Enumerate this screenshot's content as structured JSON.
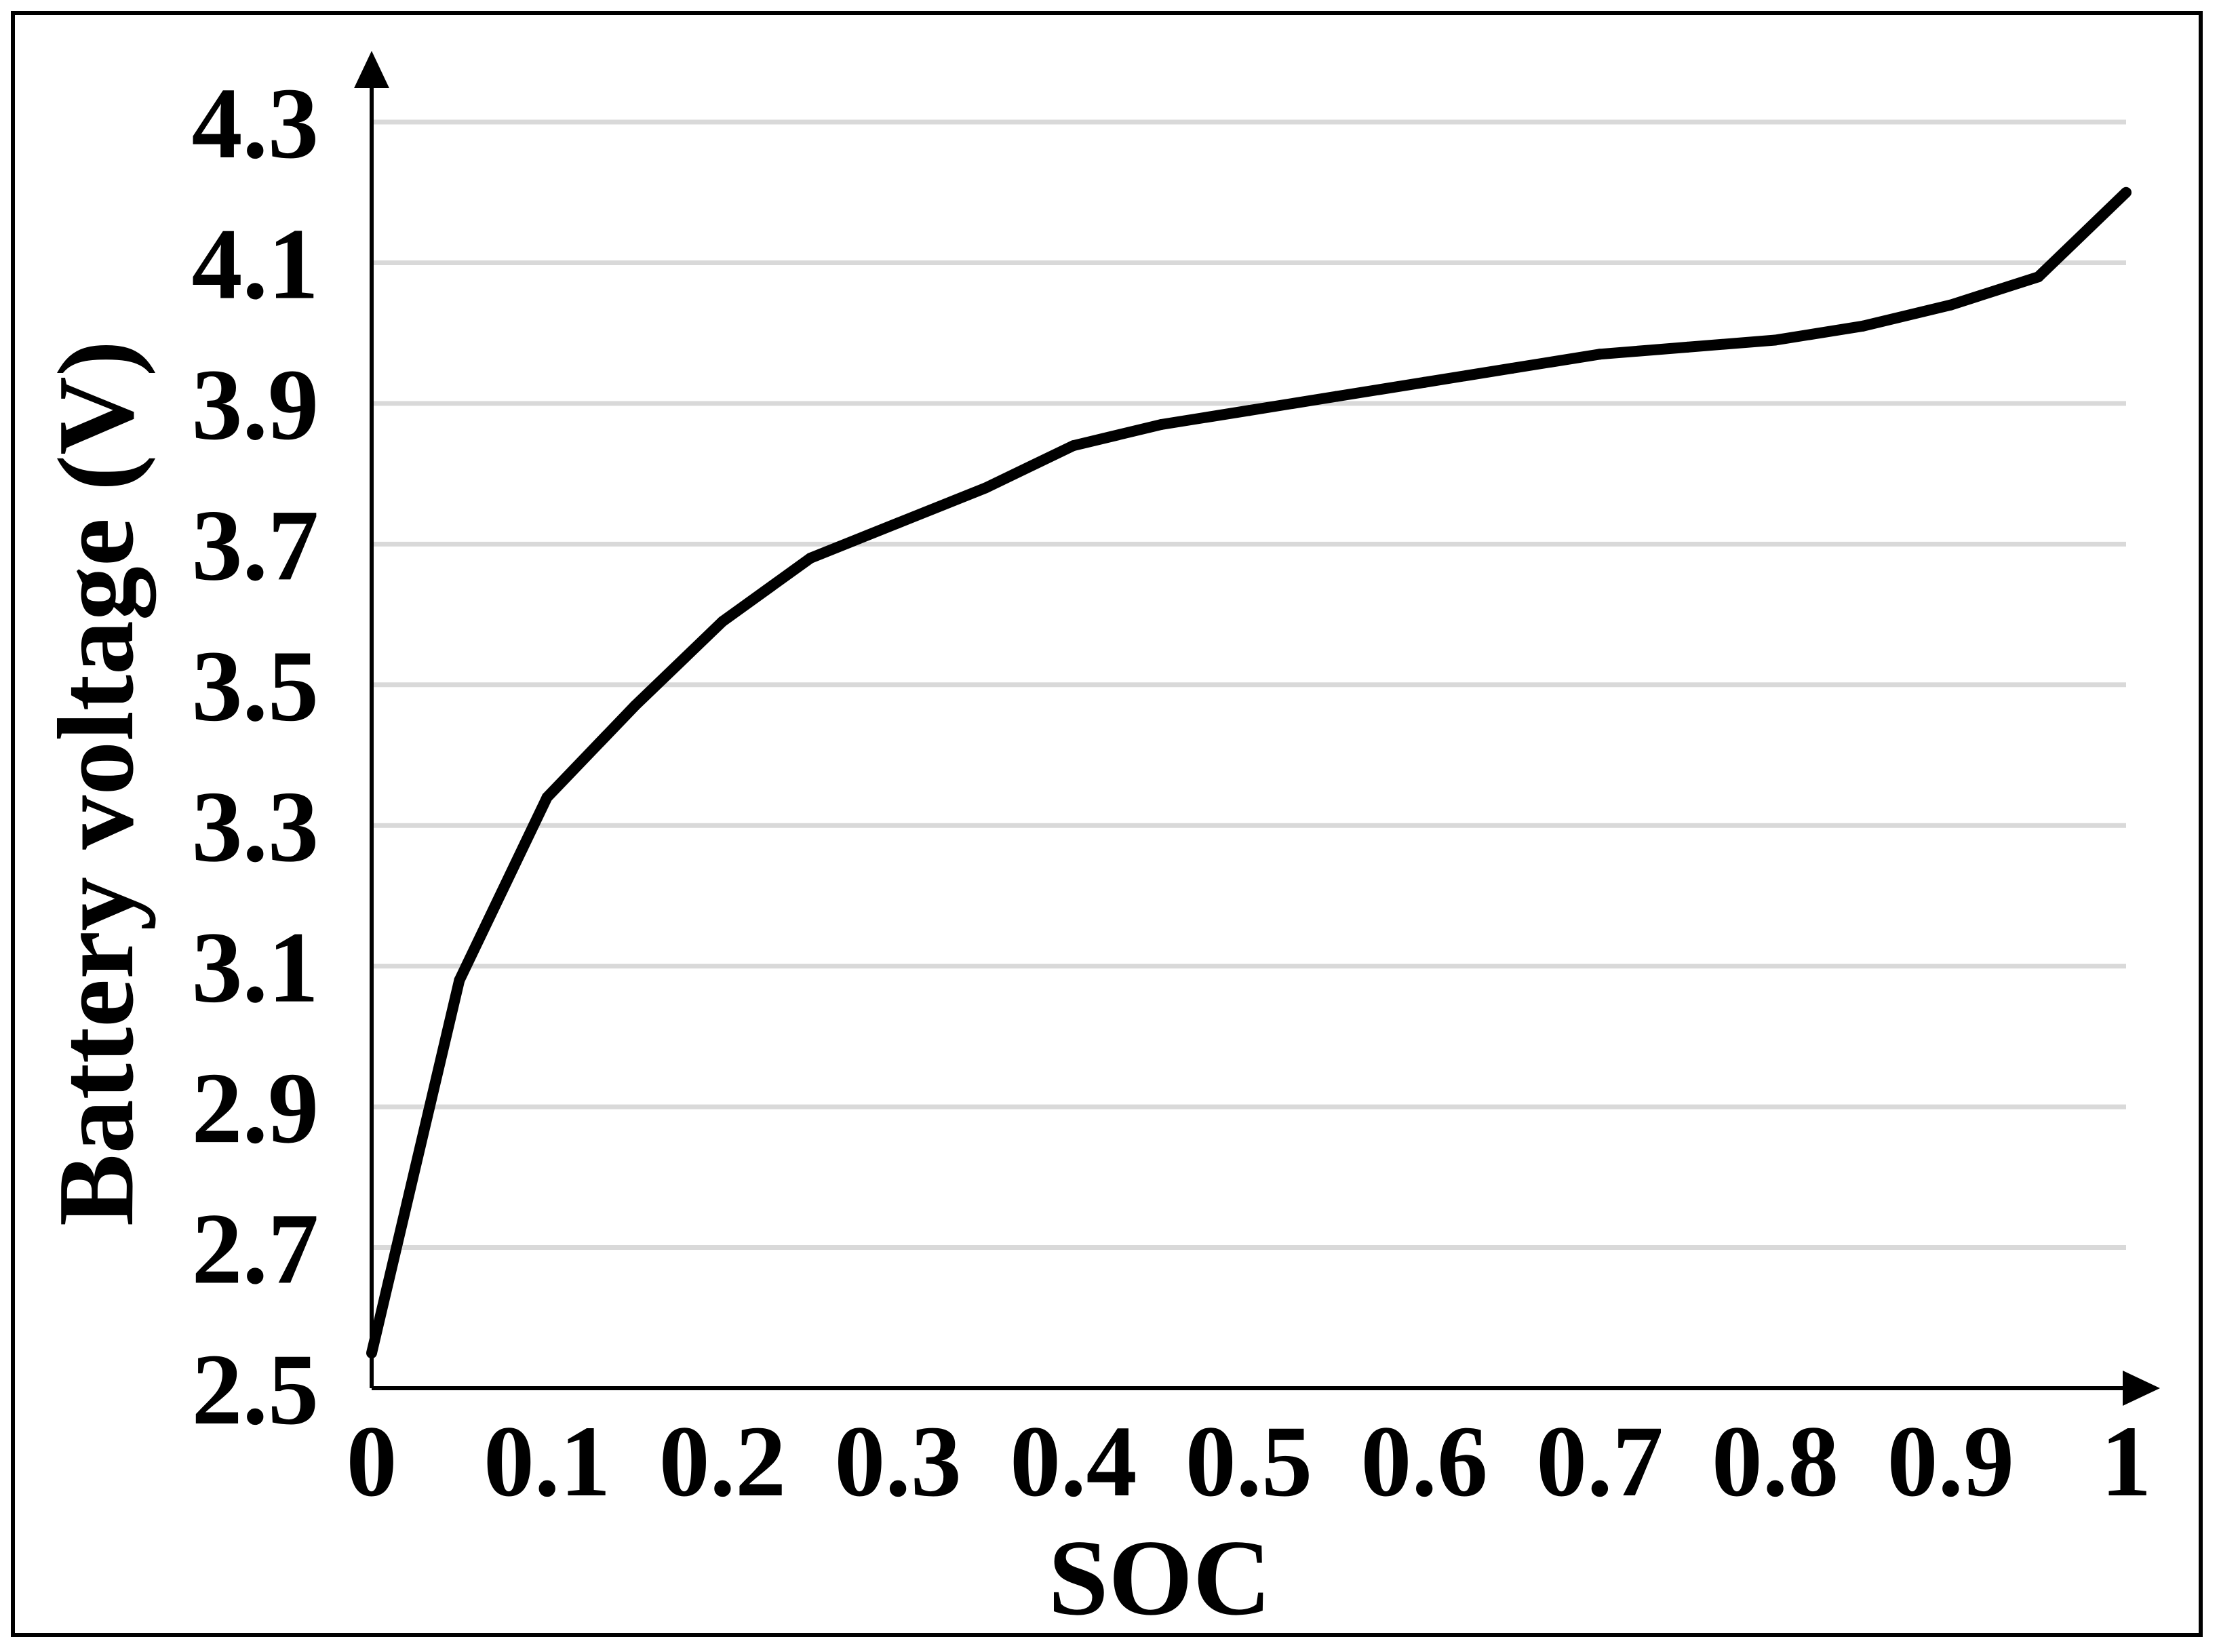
{
  "chart_data": {
    "type": "line",
    "title": "",
    "xlabel": "SOC",
    "ylabel": "Battery voltage (V)",
    "xlim": [
      0,
      1
    ],
    "ylim": [
      2.5,
      4.3
    ],
    "x_ticks": [
      "0",
      "0.1",
      "0.2",
      "0.3",
      "0.4",
      "0.5",
      "0.6",
      "0.7",
      "0.8",
      "0.9",
      "1"
    ],
    "y_ticks": [
      "4.3",
      "4.1",
      "3.9",
      "3.7",
      "3.5",
      "3.3",
      "3.1",
      "2.9",
      "2.7",
      "2.5"
    ],
    "grid": "horizontal",
    "legend": "none",
    "line_color": "#000000",
    "grid_color": "#d9d9d9",
    "series": [
      {
        "x": [
          0.0,
          0.05,
          0.1,
          0.15,
          0.2,
          0.25,
          0.3,
          0.35,
          0.4,
          0.45,
          0.5,
          0.55,
          0.6,
          0.65,
          0.7,
          0.75,
          0.8,
          0.85,
          0.9,
          0.95,
          1.0
        ],
        "values": [
          2.55,
          3.08,
          3.34,
          3.47,
          3.59,
          3.68,
          3.73,
          3.78,
          3.84,
          3.87,
          3.89,
          3.91,
          3.93,
          3.95,
          3.97,
          3.98,
          3.99,
          4.01,
          4.04,
          4.08,
          4.2
        ]
      }
    ]
  }
}
